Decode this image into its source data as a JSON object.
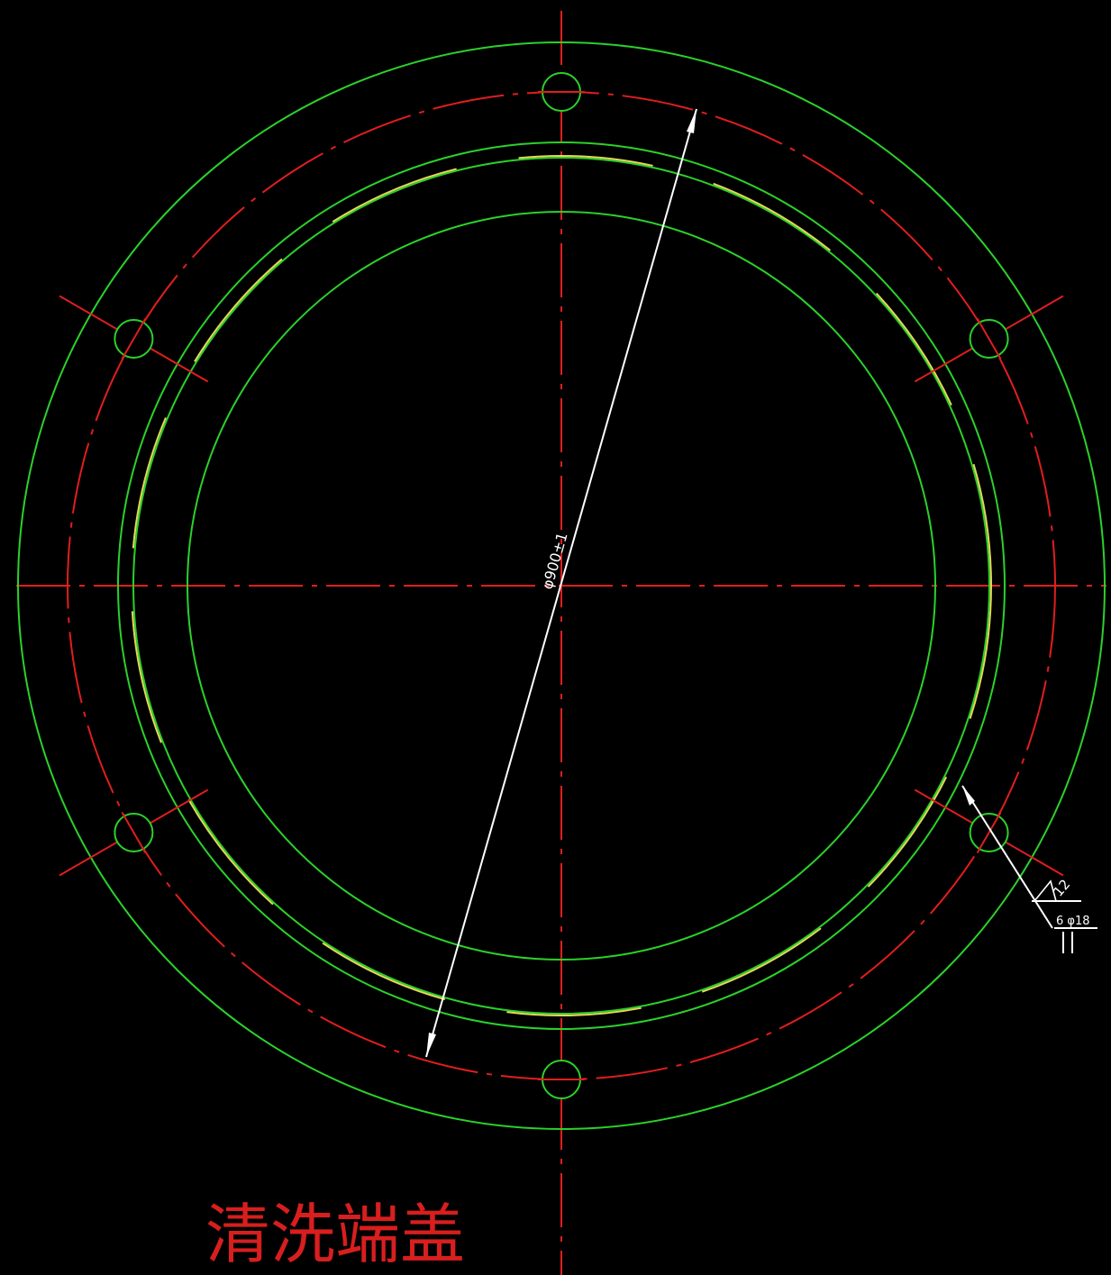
{
  "drawing": {
    "title": "清洗端盖",
    "dimension_label": "φ900±1",
    "weld_symbol_label": "12",
    "weld_note_label": "6 φ18",
    "hole_count": 6,
    "colors": {
      "background": "#000000",
      "outline": "#2bd12b",
      "centerline": "#e01e1e",
      "hidden_arc": "#e6d65a",
      "dimension": "#ffffff",
      "title": "#d81e1e"
    }
  }
}
